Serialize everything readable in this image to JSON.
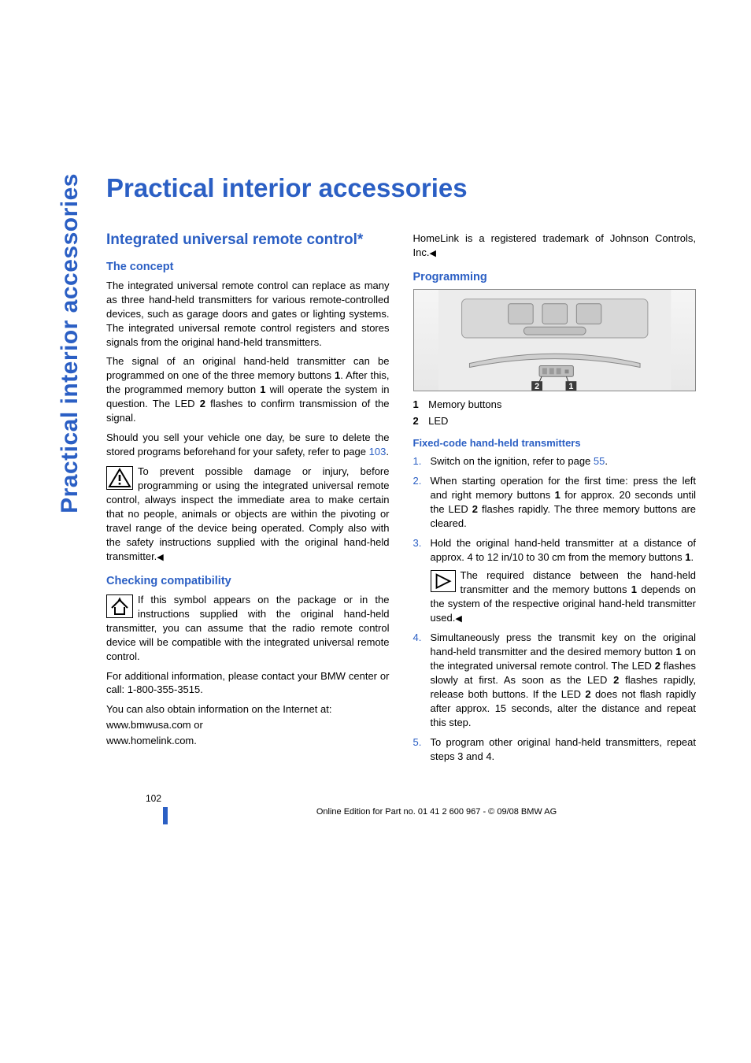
{
  "colors": {
    "accent": "#2b5fc4",
    "text": "#000000",
    "background": "#ffffff"
  },
  "typography": {
    "body_fontsize": 13,
    "h1_fontsize": 33,
    "h2_fontsize": 19,
    "h3_fontsize": 14.5,
    "font_family": "Arial, Helvetica, sans-serif"
  },
  "side_tab": "Practical interior accessories",
  "title": "Practical interior accessories",
  "left": {
    "h2": "Integrated universal remote control*",
    "concept_h": "The concept",
    "concept_p1": "The integrated universal remote control can replace as many as three hand-held transmitters for various remote-controlled devices, such as garage doors and gates or lighting systems. The integrated universal remote control registers and stores signals from the original hand-held transmitters.",
    "concept_p2_a": "The signal of an original hand-held transmitter can be programmed on one of the three memory buttons ",
    "concept_p2_bold1": "1",
    "concept_p2_b": ". After this, the programmed memory button ",
    "concept_p2_bold2": "1",
    "concept_p2_c": " will operate the system in question. The LED ",
    "concept_p2_bold3": "2",
    "concept_p2_d": " flashes to confirm transmission of the signal.",
    "concept_p3_a": "Should you sell your vehicle one day, be sure to delete the stored programs beforehand for your safety, refer to page ",
    "concept_p3_link": "103",
    "concept_p3_b": ".",
    "warn_p": "To prevent possible damage or injury, before programming or using the integrated universal remote control, always inspect the immediate area to make certain that no people, animals or objects are within the pivoting or travel range of the device being operated. Comply also with the safety instructions supplied with the original hand-held transmitter.",
    "warn_tri": "◀",
    "compat_h": "Checking compatibility",
    "compat_p1": "If this symbol appears on the package or in the instructions supplied with the original hand-held transmitter, you can assume that the radio remote control device will be compatible with the integrated universal remote control.",
    "compat_p2": "For additional information, please contact your BMW center or call: 1-800-355-3515.",
    "compat_p3": "You can also obtain information on the Internet at:",
    "compat_p4": "www.bmwusa.com or",
    "compat_p5": "www.homelink.com."
  },
  "right": {
    "top_p": "HomeLink is a registered trademark of Johnson Controls, Inc.",
    "top_tri": "◀",
    "prog_h": "Programming",
    "figure": {
      "labels": [
        "2",
        "1"
      ],
      "label_color": "#ffffff",
      "label_bg": "#3a3a3a"
    },
    "legend": [
      {
        "n": "1",
        "t": "Memory buttons"
      },
      {
        "n": "2",
        "t": "LED"
      }
    ],
    "fixed_h": "Fixed-code hand-held transmitters",
    "steps": [
      {
        "n": "1.",
        "parts": [
          {
            "t": "Switch on the ignition, refer to page "
          },
          {
            "t": "55",
            "link": true
          },
          {
            "t": "."
          }
        ]
      },
      {
        "n": "2.",
        "parts": [
          {
            "t": "When starting operation for the first time: press the left and right memory buttons "
          },
          {
            "t": "1",
            "bold": true
          },
          {
            "t": " for approx. 20 seconds until the LED "
          },
          {
            "t": "2",
            "bold": true
          },
          {
            "t": " flashes rapidly. The three memory buttons are cleared."
          }
        ]
      },
      {
        "n": "3.",
        "parts": [
          {
            "t": "Hold the original hand-held transmitter at a distance of approx. 4 to 12 in/10 to 30 cm from the memory buttons "
          },
          {
            "t": "1",
            "bold": true
          },
          {
            "t": "."
          }
        ],
        "inset": {
          "parts": [
            {
              "t": "The required distance between the hand-held transmitter and the memory buttons "
            },
            {
              "t": "1",
              "bold": true
            },
            {
              "t": " depends on the system of the respective original hand-held transmitter used."
            },
            {
              "t": "◀",
              "tri": true
            }
          ]
        }
      },
      {
        "n": "4.",
        "parts": [
          {
            "t": "Simultaneously press the transmit key on the original hand-held transmitter and the desired memory button "
          },
          {
            "t": "1",
            "bold": true
          },
          {
            "t": " on the integrated universal remote control. The LED "
          },
          {
            "t": "2",
            "bold": true
          },
          {
            "t": " flashes slowly at first. As soon as the LED "
          },
          {
            "t": "2",
            "bold": true
          },
          {
            "t": " flashes rapidly, release both buttons. If the LED "
          },
          {
            "t": "2",
            "bold": true
          },
          {
            "t": " does not flash rapidly after approx. 15 seconds, alter the distance and repeat this step."
          }
        ]
      },
      {
        "n": "5.",
        "parts": [
          {
            "t": "To program other original hand-held transmitters, repeat steps 3 and 4."
          }
        ]
      }
    ]
  },
  "footer": {
    "page": "102",
    "text": "Online Edition for Part no. 01 41 2 600 967  - © 09/08 BMW AG"
  }
}
